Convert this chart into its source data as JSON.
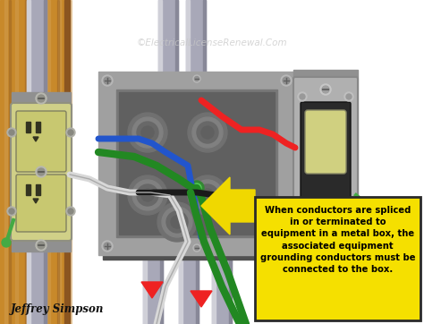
{
  "bg_color": "#ffffff",
  "wood_color": "#b87833",
  "wood_mid": "#c8892a",
  "wood_dark": "#8a5520",
  "wood_light": "#d4a055",
  "box_outer": "#8a8a8a",
  "box_mid": "#a0a0a0",
  "box_inner_bg": "#787878",
  "box_inner_dark": "#606060",
  "box_inner_light": "#b0b0b8",
  "conduit_light": "#d0d0d8",
  "conduit_mid": "#a8a8b8",
  "conduit_dark": "#888898",
  "wire_red": "#ee2222",
  "wire_black": "#1a1a1a",
  "wire_white": "#d8d8d8",
  "wire_white_outline": "#aaaaaa",
  "wire_green": "#228822",
  "wire_blue": "#2255cc",
  "outlet_body": "#d0d088",
  "outlet_face": "#c8c870",
  "outlet_slot": "#333320",
  "switch_plate": "#b0b0b0",
  "switch_body": "#2a2a2a",
  "switch_toggle": "#d0d080",
  "switch_screw": "#c0c0c0",
  "metal_screw": "#c0c0c0",
  "arrow_yellow": "#f0d800",
  "text_box_bg": "#f5e000",
  "text_box_border": "#2a2a2a",
  "watermark_color": "#c8c8c8",
  "watermark_text": "©ElectricalLicenseRenewal.Com",
  "annotation_text": "When conductors are spliced\nin or terminated to\nequipment in a metal box, the\nassociated equipment\ngrounding conductors must be\nconnected to the box.",
  "credit_text": "Jeffrey Simpson",
  "figsize": [
    4.74,
    3.62
  ],
  "dpi": 100
}
